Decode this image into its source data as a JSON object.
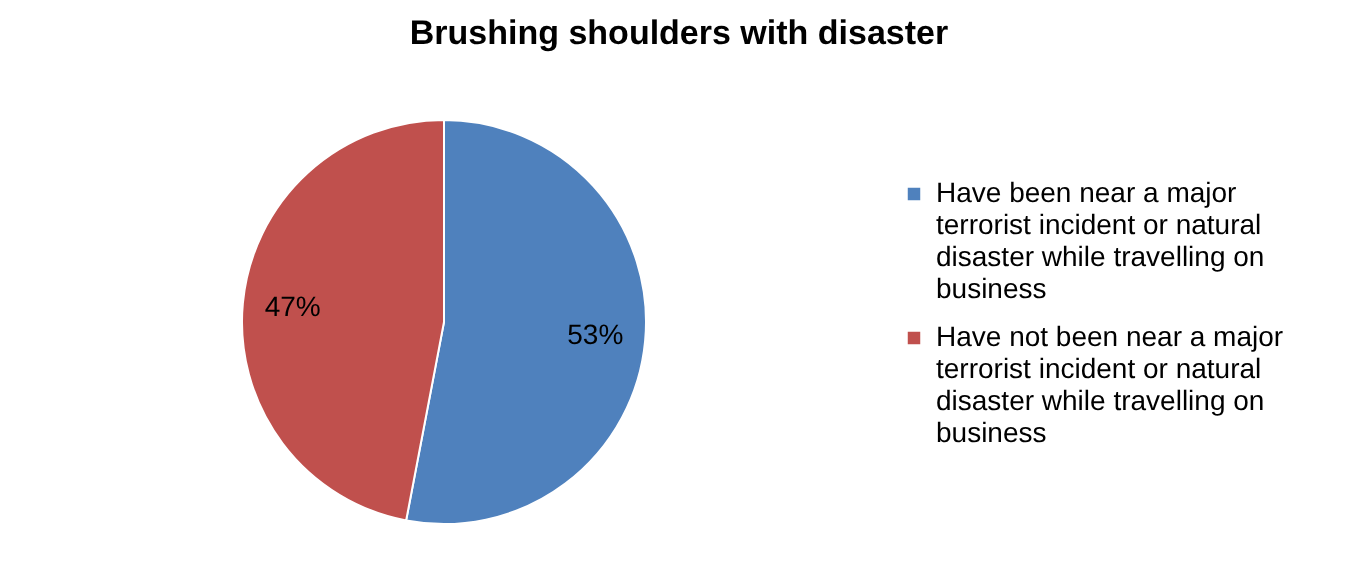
{
  "chart_data": {
    "type": "pie",
    "title": "Brushing shoulders with disaster",
    "categories": [
      "Have been near a major terrorist incident or natural disaster while travelling on business",
      "Have not been near a major terrorist incident or natural disaster while travelling on business"
    ],
    "values": [
      53,
      47
    ],
    "colors": [
      "#4f81bd",
      "#c0504d"
    ],
    "value_labels": [
      "53%",
      "47%"
    ],
    "legend": "right"
  }
}
